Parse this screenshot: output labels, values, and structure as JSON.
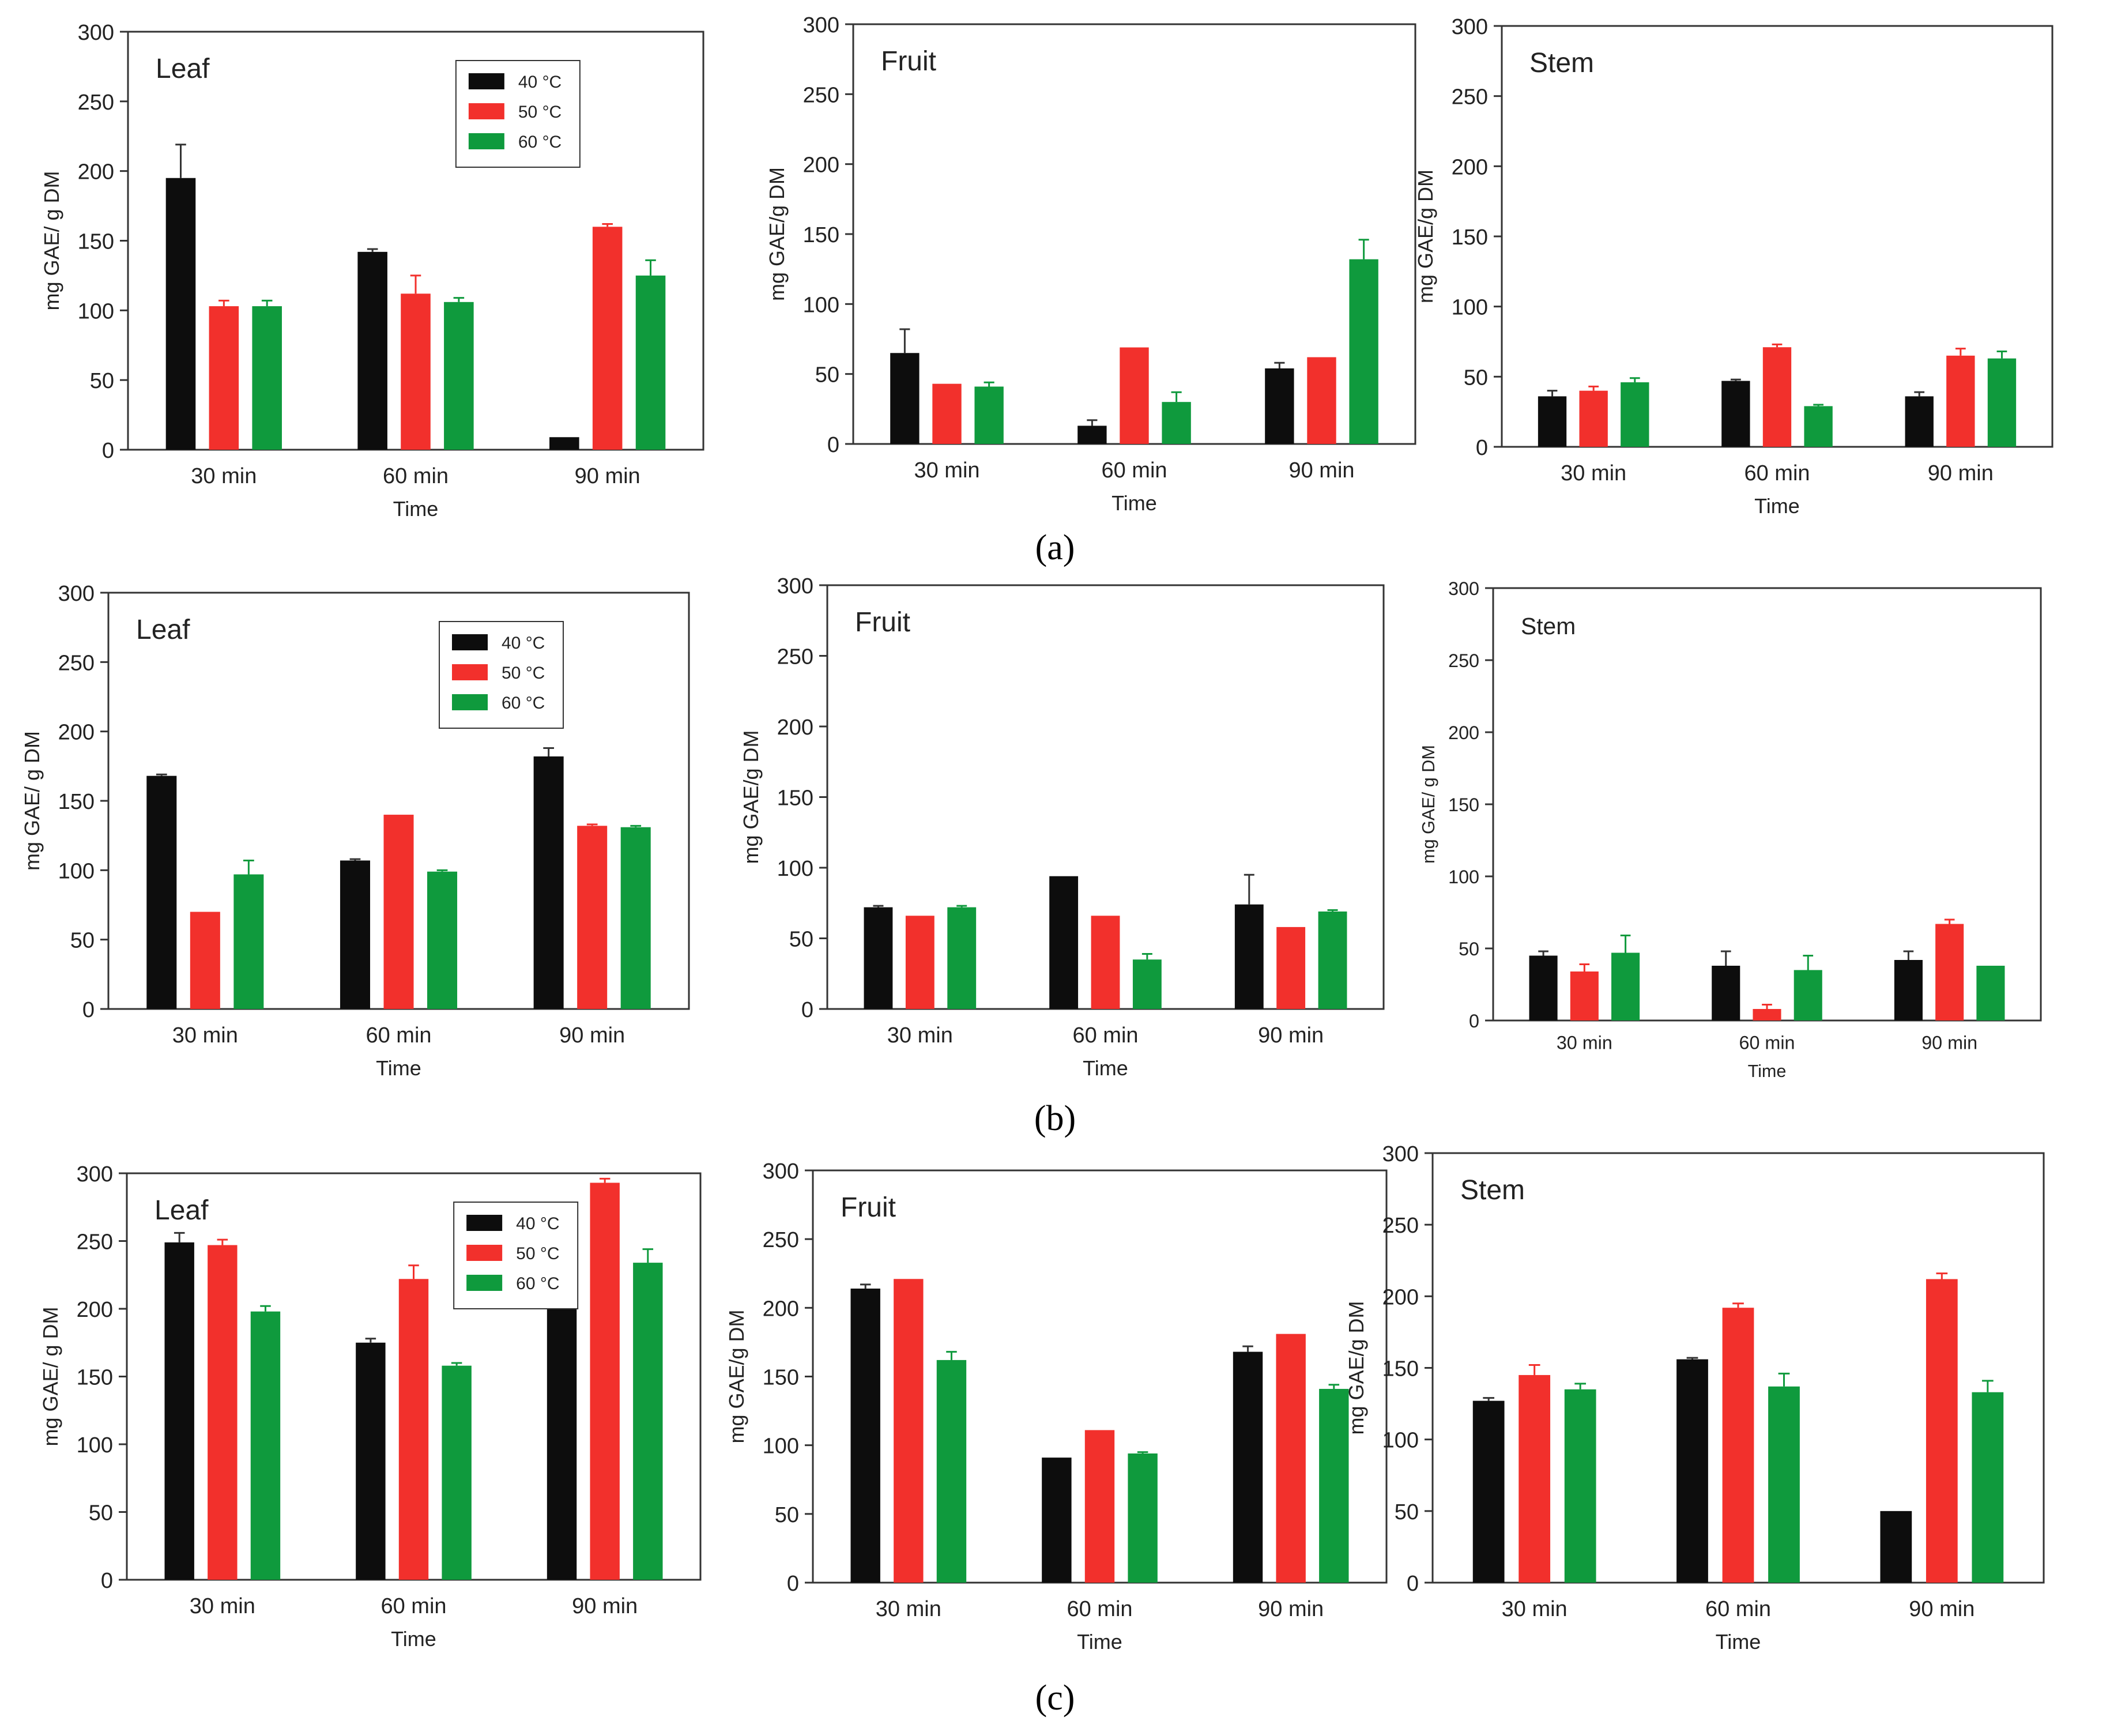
{
  "figure": {
    "captions": [
      "(a)",
      "(b)",
      "(c)"
    ]
  },
  "colors": {
    "40 °C": "#0d0d0d",
    "50 °C": "#f2302c",
    "60 °C": "#0f9a3d"
  },
  "chart_data": [
    {
      "panel": "a",
      "type": "bar",
      "title": "Leaf",
      "xlabel": "Time",
      "ylabel": "mg GAE/ g DM",
      "ylim": [
        0,
        300
      ],
      "yticks": [
        0,
        50,
        100,
        150,
        200,
        250,
        300
      ],
      "categories": [
        "30 min",
        "60 min",
        "90 min"
      ],
      "legend": {
        "location": "top-right",
        "entries": [
          "40 °C",
          "50 °C",
          "60 °C"
        ]
      },
      "series": [
        {
          "name": "40 °C",
          "values": [
            195,
            142,
            9
          ],
          "errors": [
            24,
            2,
            0
          ]
        },
        {
          "name": "50 °C",
          "values": [
            103,
            112,
            160
          ],
          "errors": [
            4,
            13,
            2
          ]
        },
        {
          "name": "60 °C",
          "values": [
            103,
            106,
            125
          ],
          "errors": [
            4,
            3,
            11
          ]
        }
      ]
    },
    {
      "panel": "a",
      "type": "bar",
      "title": "Fruit",
      "xlabel": "Time",
      "ylabel": "mg GAE/g DM",
      "ylim": [
        0,
        300
      ],
      "yticks": [
        0,
        50,
        100,
        150,
        200,
        250,
        300
      ],
      "categories": [
        "30 min",
        "60 min",
        "90 min"
      ],
      "series": [
        {
          "name": "40 °C",
          "values": [
            65,
            13,
            54
          ],
          "errors": [
            17,
            4,
            4
          ]
        },
        {
          "name": "50 °C",
          "values": [
            43,
            69,
            62
          ],
          "errors": [
            0,
            0,
            0
          ]
        },
        {
          "name": "60 °C",
          "values": [
            41,
            30,
            132
          ],
          "errors": [
            3,
            7,
            14
          ]
        }
      ]
    },
    {
      "panel": "a",
      "type": "bar",
      "title": "Stem",
      "xlabel": "Time",
      "ylabel": "mg GAE/g DM",
      "ylim": [
        0,
        300
      ],
      "yticks": [
        0,
        50,
        100,
        150,
        200,
        250,
        300
      ],
      "categories": [
        "30 min",
        "60 min",
        "90 min"
      ],
      "series": [
        {
          "name": "40 °C",
          "values": [
            36,
            47,
            36
          ],
          "errors": [
            4,
            1,
            3
          ]
        },
        {
          "name": "50 °C",
          "values": [
            40,
            71,
            65
          ],
          "errors": [
            3,
            2,
            5
          ]
        },
        {
          "name": "60 °C",
          "values": [
            46,
            29,
            63
          ],
          "errors": [
            3,
            1,
            5
          ]
        }
      ]
    },
    {
      "panel": "b",
      "type": "bar",
      "title": "Leaf",
      "xlabel": "Time",
      "ylabel": "mg GAE/ g DM",
      "ylim": [
        0,
        300
      ],
      "yticks": [
        0,
        50,
        100,
        150,
        200,
        250,
        300
      ],
      "categories": [
        "30 min",
        "60 min",
        "90 min"
      ],
      "legend": {
        "location": "top-right",
        "entries": [
          "40 °C",
          "50 °C",
          "60 °C"
        ]
      },
      "series": [
        {
          "name": "40 °C",
          "values": [
            168,
            107,
            182
          ],
          "errors": [
            1,
            1,
            6
          ]
        },
        {
          "name": "50 °C",
          "values": [
            70,
            140,
            132
          ],
          "errors": [
            0,
            0,
            1
          ]
        },
        {
          "name": "60 °C",
          "values": [
            97,
            99,
            131
          ],
          "errors": [
            10,
            1,
            1
          ]
        }
      ]
    },
    {
      "panel": "b",
      "type": "bar",
      "title": "Fruit",
      "xlabel": "Time",
      "ylabel": "mg GAE/g DM",
      "ylim": [
        0,
        300
      ],
      "yticks": [
        0,
        50,
        100,
        150,
        200,
        250,
        300
      ],
      "categories": [
        "30 min",
        "60 min",
        "90 min"
      ],
      "series": [
        {
          "name": "40 °C",
          "values": [
            72,
            94,
            74
          ],
          "errors": [
            1,
            0,
            21
          ]
        },
        {
          "name": "50 °C",
          "values": [
            66,
            66,
            58
          ],
          "errors": [
            0,
            0,
            0
          ]
        },
        {
          "name": "60 °C",
          "values": [
            72,
            35,
            69
          ],
          "errors": [
            1,
            4,
            1
          ]
        }
      ]
    },
    {
      "panel": "b",
      "type": "bar",
      "title": "Stem",
      "xlabel": "Time",
      "ylabel": "mg GAE/ g DM",
      "ylim": [
        0,
        300
      ],
      "yticks": [
        0,
        50,
        100,
        150,
        200,
        250,
        300
      ],
      "categories": [
        "30 min",
        "60 min",
        "90 min"
      ],
      "series": [
        {
          "name": "40 °C",
          "values": [
            45,
            38,
            42
          ],
          "errors": [
            3,
            10,
            6
          ]
        },
        {
          "name": "50 °C",
          "values": [
            34,
            8,
            67
          ],
          "errors": [
            5,
            3,
            3
          ]
        },
        {
          "name": "60 °C",
          "values": [
            47,
            35,
            38
          ],
          "errors": [
            12,
            10,
            0
          ]
        }
      ]
    },
    {
      "panel": "c",
      "type": "bar",
      "title": "Leaf",
      "xlabel": "Time",
      "ylabel": "mg GAE/ g DM",
      "ylim": [
        0,
        300
      ],
      "yticks": [
        0,
        50,
        100,
        150,
        200,
        250,
        300
      ],
      "categories": [
        "30 min",
        "60 min",
        "90 min"
      ],
      "legend": {
        "location": "top-right",
        "entries": [
          "40 °C",
          "50 °C",
          "60 °C"
        ]
      },
      "series": [
        {
          "name": "40 °C",
          "values": [
            249,
            175,
            205
          ],
          "errors": [
            7,
            3,
            0
          ]
        },
        {
          "name": "50 °C",
          "values": [
            247,
            222,
            293
          ],
          "errors": [
            4,
            10,
            3
          ]
        },
        {
          "name": "60 °C",
          "values": [
            198,
            158,
            234
          ],
          "errors": [
            4,
            2,
            10
          ]
        }
      ]
    },
    {
      "panel": "c",
      "type": "bar",
      "title": "Fruit",
      "xlabel": "Time",
      "ylabel": "mg GAE/g DM",
      "ylim": [
        0,
        300
      ],
      "yticks": [
        0,
        50,
        100,
        150,
        200,
        250,
        300
      ],
      "categories": [
        "30 min",
        "60 min",
        "90 min"
      ],
      "series": [
        {
          "name": "40 °C",
          "values": [
            214,
            91,
            168
          ],
          "errors": [
            3,
            0,
            4
          ]
        },
        {
          "name": "50 °C",
          "values": [
            221,
            111,
            181
          ],
          "errors": [
            0,
            0,
            0
          ]
        },
        {
          "name": "60 °C",
          "values": [
            162,
            94,
            141
          ],
          "errors": [
            6,
            1,
            3
          ]
        }
      ]
    },
    {
      "panel": "c",
      "type": "bar",
      "title": "Stem",
      "xlabel": "Time",
      "ylabel": "mg GAE/g DM",
      "ylim": [
        0,
        300
      ],
      "yticks": [
        0,
        50,
        100,
        150,
        200,
        250,
        300
      ],
      "categories": [
        "30 min",
        "60 min",
        "90 min"
      ],
      "series": [
        {
          "name": "40 °C",
          "values": [
            127,
            156,
            50
          ],
          "errors": [
            2,
            1,
            0
          ]
        },
        {
          "name": "50 °C",
          "values": [
            145,
            192,
            212
          ],
          "errors": [
            7,
            3,
            4
          ]
        },
        {
          "name": "60 °C",
          "values": [
            135,
            137,
            133
          ],
          "errors": [
            4,
            9,
            8
          ]
        }
      ]
    }
  ]
}
